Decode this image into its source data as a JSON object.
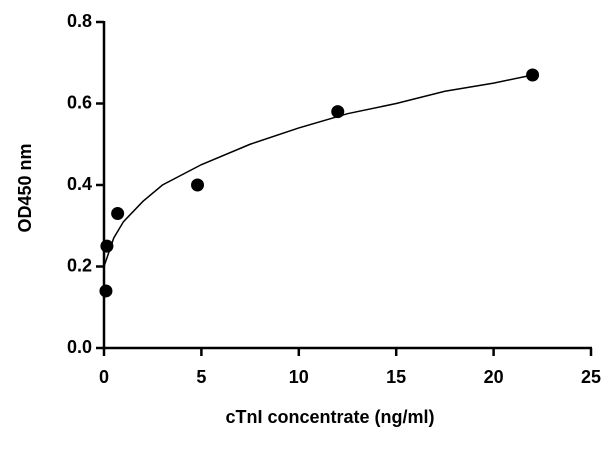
{
  "chart_data": {
    "type": "scatter",
    "x_label": "cTnI concentrate (ng/ml)",
    "y_label": "OD450 nm",
    "xlim": [
      0,
      25
    ],
    "xticks": [
      0,
      5,
      10,
      15,
      20,
      25
    ],
    "ylim": [
      0,
      0.8
    ],
    "yticks": [
      {
        "value": 0,
        "label": "0.0"
      },
      0.2,
      0.4,
      0.6,
      0.8
    ],
    "series": [
      {
        "mode": "markers",
        "color": "#000000",
        "x": [
          0.1,
          0.15,
          0.7,
          4.8,
          12,
          22
        ],
        "values": [
          0.14,
          0.25,
          0.33,
          0.4,
          0.58,
          0.67
        ]
      },
      {
        "mode": "line",
        "color": "#000000",
        "x": [
          0,
          0.5,
          1,
          2,
          3,
          5,
          7.5,
          10,
          12.5,
          15,
          17.5,
          20,
          22
        ],
        "values": [
          0.2,
          0.27,
          0.31,
          0.36,
          0.4,
          0.45,
          0.5,
          0.54,
          0.575,
          0.6,
          0.63,
          0.65,
          0.67
        ]
      }
    ]
  }
}
